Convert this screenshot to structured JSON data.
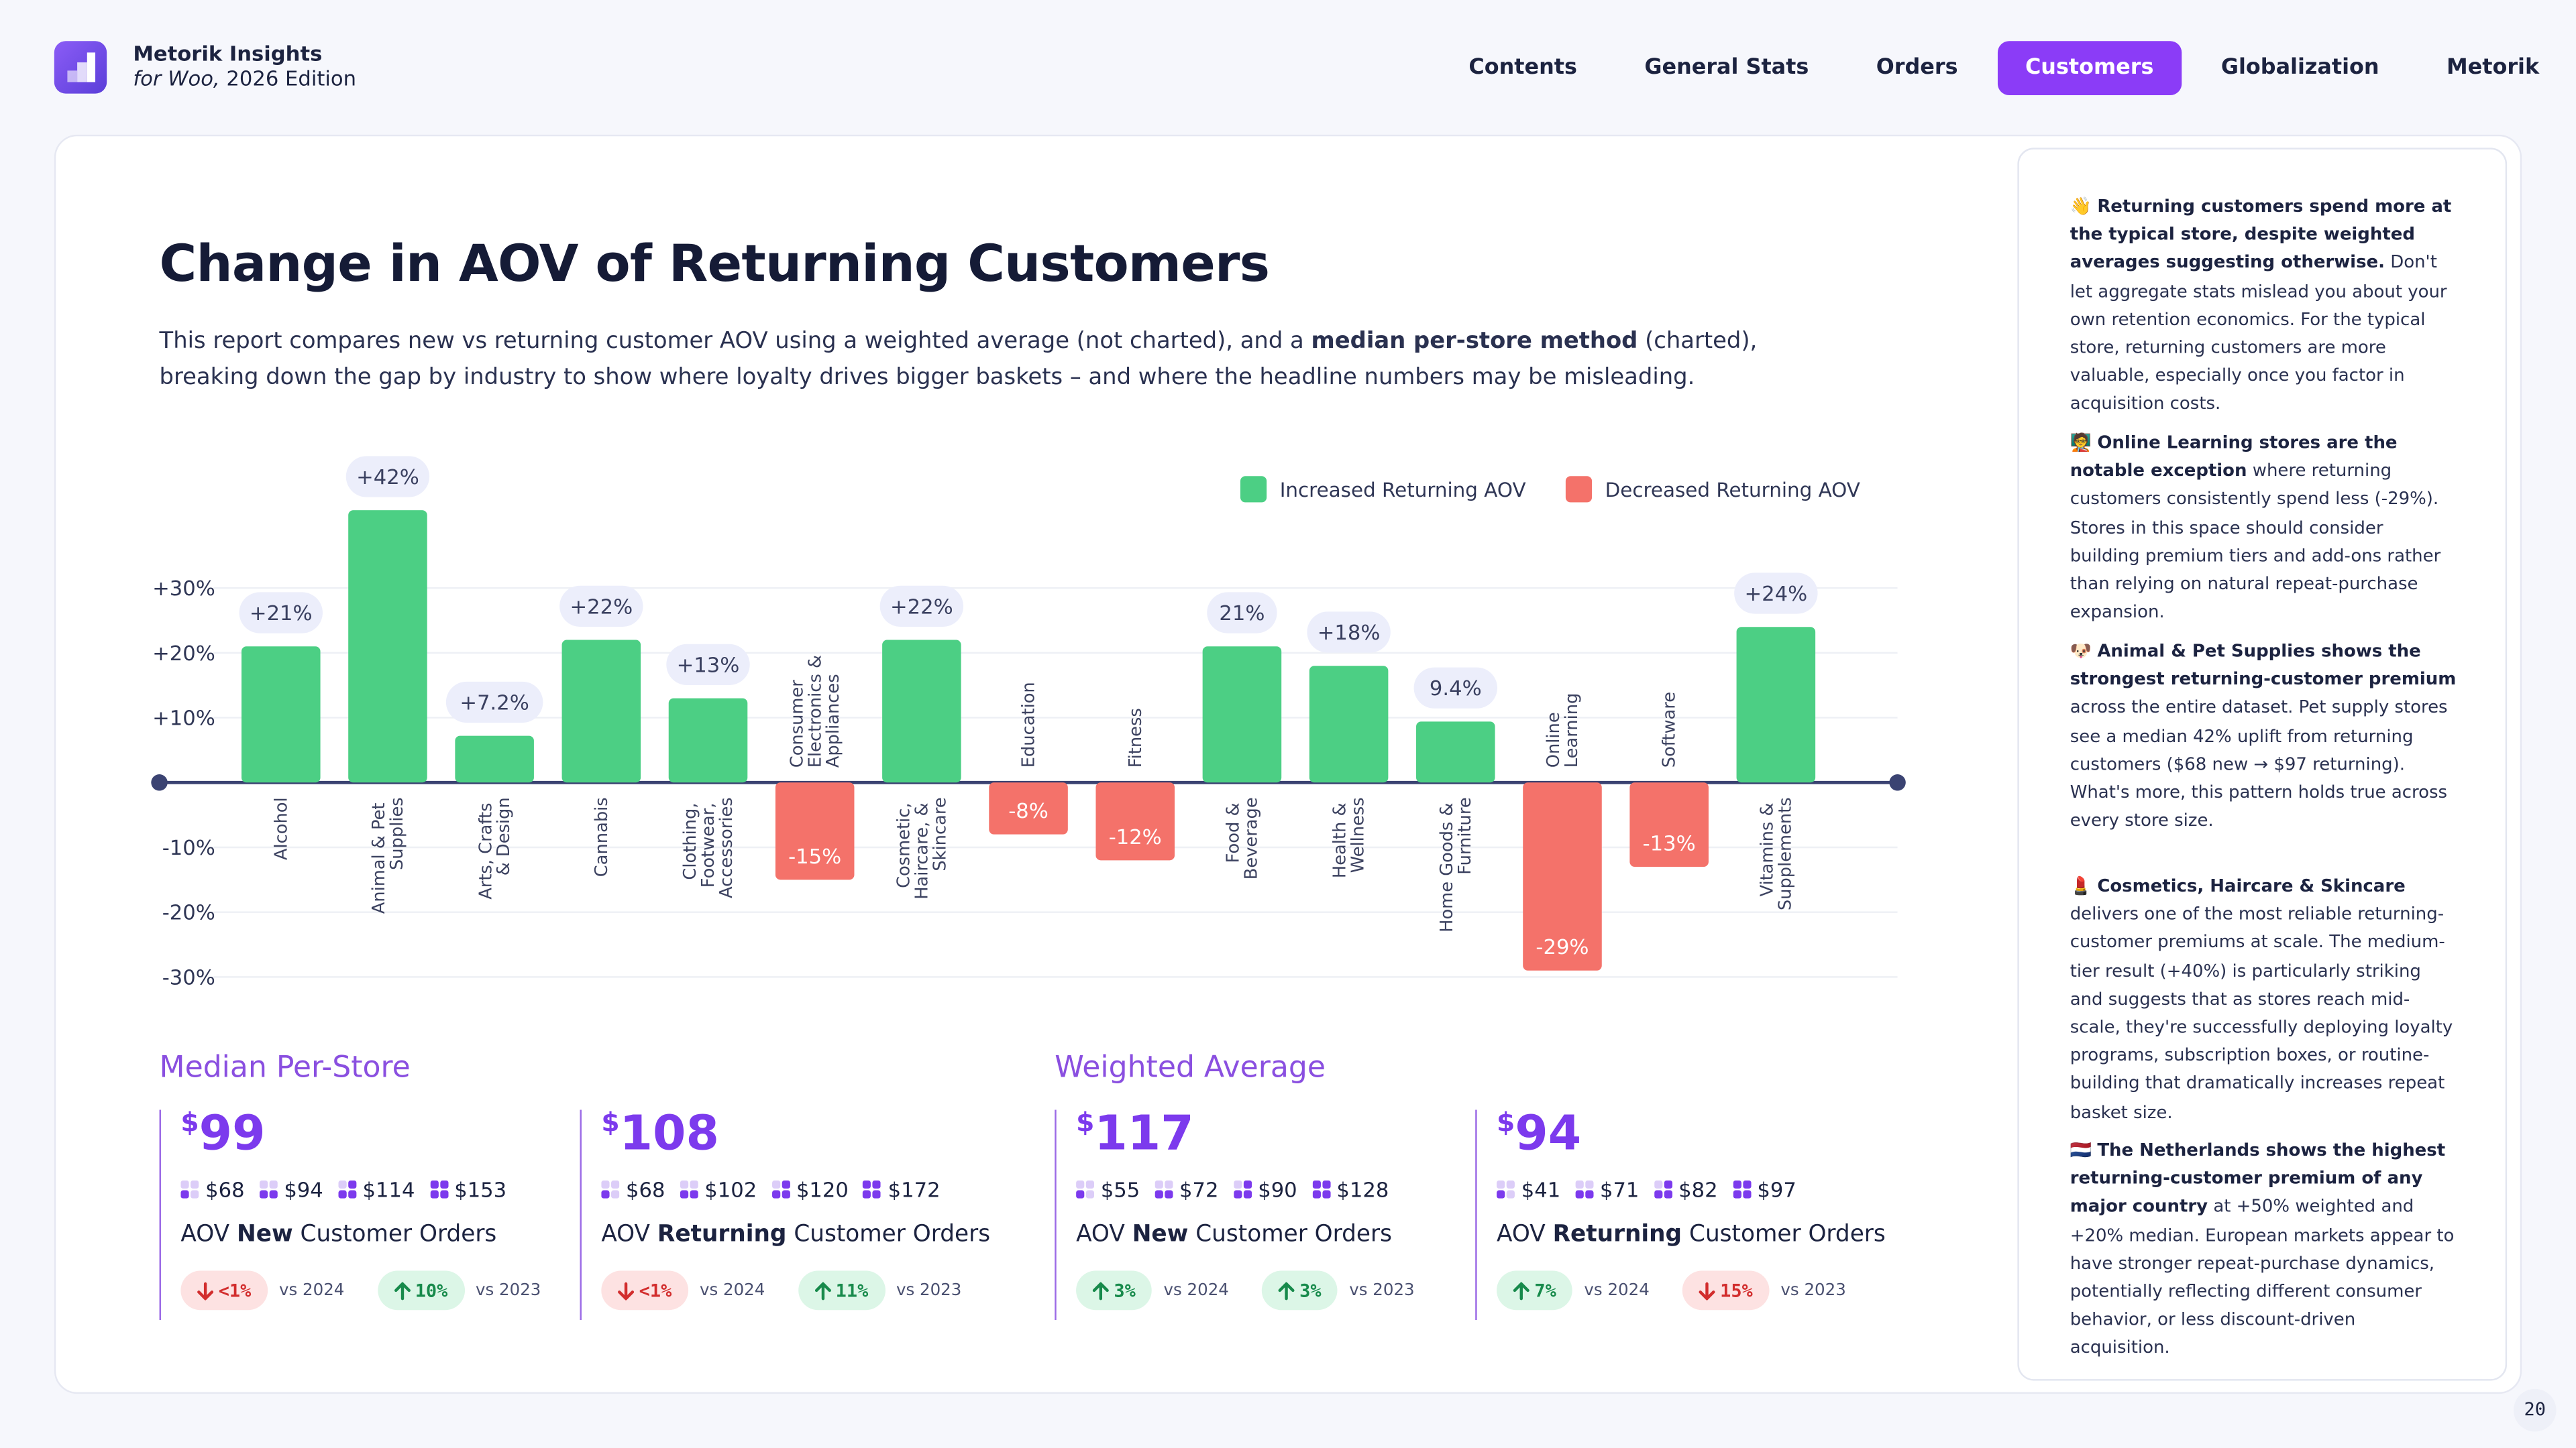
{
  "header": {
    "brand": "Metorik Insights",
    "edition_italic": "for Woo,",
    "edition": "2026 Edition"
  },
  "nav": {
    "items": [
      {
        "label": "Contents",
        "active": false
      },
      {
        "label": "General Stats",
        "active": false
      },
      {
        "label": "Orders",
        "active": false
      },
      {
        "label": "Customers",
        "active": true
      },
      {
        "label": "Globalization",
        "active": false
      },
      {
        "label": "Metorik",
        "active": false
      }
    ]
  },
  "description": {
    "parts": [
      {
        "text": "This report compares new vs returning customer AOV using a weighted average (not charted), and a",
        "bold": false
      },
      {
        "text": "median per-store method",
        "bold": true
      },
      {
        "text": "(charted), breaking down the gap by industry to show where loyalty drives bigger baskets – and where the headline numbers may be misleading.",
        "bold": false
      }
    ]
  },
  "chart_data": {
    "type": "bar",
    "title": "Change in AOV of Returning Customers",
    "categories": [
      "Alcohol",
      "Animal & Pet Supplies",
      "Arts, Crafts & Design",
      "Cannabis",
      "Clothing, Footwear, Accessories",
      "Consumer Electronics & Appliances",
      "Cosmetic, Haircare, & Skincare",
      "Education",
      "Fitness",
      "Food & Beverage",
      "Health & Wellness",
      "Home Goods & Furniture",
      "Online Learning",
      "Software",
      "Vitamins & Supplements"
    ],
    "values": [
      21,
      42,
      7.2,
      22,
      13,
      -15,
      22,
      -8,
      -12,
      21,
      18,
      9.4,
      -29,
      -13,
      24
    ],
    "value_labels": [
      "+21%",
      "+42%",
      "+7.2%",
      "+22%",
      "+13%",
      "-15%",
      "+22%",
      "-8%",
      "-12%",
      "21%",
      "+18%",
      "9.4%",
      "-29%",
      "-13%",
      "+24%"
    ],
    "legend": [
      {
        "name": "Increased Returning AOV",
        "color": "#4ccf84"
      },
      {
        "name": "Decreased Returning AOV",
        "color": "#f4726a"
      }
    ],
    "ylim": [
      -32,
      46
    ],
    "yticks": [
      {
        "value": 30,
        "label": "+30%"
      },
      {
        "value": 20,
        "label": "+20%"
      },
      {
        "value": 10,
        "label": "+10%"
      },
      {
        "value": -10,
        "label": "-10%"
      },
      {
        "value": -20,
        "label": "-20%"
      },
      {
        "value": -30,
        "label": "-30%"
      }
    ],
    "grid": true
  },
  "currency": "$",
  "stats": [
    {
      "heading": "Median Per-Store",
      "cards": [
        {
          "amount": "99",
          "tiers": [
            "$68",
            "$94",
            "$114",
            "$153"
          ],
          "label": {
            "pre": "AOV",
            "bold": "New",
            "post": "Customer Orders"
          },
          "badges": [
            {
              "direction": "down",
              "text": "<1%",
              "vs": "vs 2024"
            },
            {
              "direction": "up",
              "text": "10%",
              "vs": "vs 2023"
            }
          ]
        },
        {
          "amount": "108",
          "tiers": [
            "$68",
            "$102",
            "$120",
            "$172"
          ],
          "label": {
            "pre": "AOV",
            "bold": "Returning",
            "post": "Customer Orders"
          },
          "badges": [
            {
              "direction": "down",
              "text": "<1%",
              "vs": "vs 2024"
            },
            {
              "direction": "up",
              "text": "11%",
              "vs": "vs 2023"
            }
          ]
        }
      ]
    },
    {
      "heading": "Weighted Average",
      "cards": [
        {
          "amount": "117",
          "tiers": [
            "$55",
            "$72",
            "$90",
            "$128"
          ],
          "label": {
            "pre": "AOV",
            "bold": "New",
            "post": "Customer Orders"
          },
          "badges": [
            {
              "direction": "up",
              "text": "3%",
              "vs": "vs 2024"
            },
            {
              "direction": "up",
              "text": "3%",
              "vs": "vs 2023"
            }
          ]
        },
        {
          "amount": "94",
          "tiers": [
            "$41",
            "$71",
            "$82",
            "$97"
          ],
          "label": {
            "pre": "AOV",
            "bold": "Returning",
            "post": "Customer Orders"
          },
          "badges": [
            {
              "direction": "up",
              "text": "7%",
              "vs": "vs 2024"
            },
            {
              "direction": "down",
              "text": "15%",
              "vs": "vs 2023"
            }
          ]
        }
      ]
    }
  ],
  "sidebar": [
    {
      "emoji": "👋",
      "bold": "Returning customers spend more at the typical store, despite weighted averages suggesting otherwise.",
      "text": "Don't let aggregate stats mislead you about your own retention economics. For the typical store, returning customers are more valuable, especially once you factor in acquisition costs."
    },
    {
      "emoji": "🧑‍🏫",
      "bold": "Online Learning stores are the notable exception",
      "text": "where returning customers consistently spend less (-29%). Stores in this space should consider building premium tiers and add-ons rather than relying on natural repeat-purchase expansion."
    },
    {
      "emoji": "🐶",
      "bold": "Animal & Pet Supplies shows the strongest returning-customer premium",
      "text": "across the entire dataset. Pet supply stores see a median 42% uplift from returning customers ($68 new → $97 returning). What's more, this pattern holds true across every store size."
    },
    {
      "emoji": "💄",
      "bold": "Cosmetics, Haircare & Skincare",
      "text": "delivers one of the most reliable returning-customer premiums at scale. The medium-tier result (+40%) is particularly striking and suggests that as stores reach mid-scale, they're successfully deploying loyalty programs, subscription boxes, or routine-building that dramatically increases repeat basket size."
    },
    {
      "emoji": "🇳🇱",
      "bold": "The Netherlands shows the highest returning-customer premium of any major country",
      "text": "at +50% weighted and +20% median. European markets appear to have stronger repeat-purchase dynamics, potentially reflecting different consumer behavior, or less discount-driven acquisition."
    }
  ],
  "page_number": "20"
}
